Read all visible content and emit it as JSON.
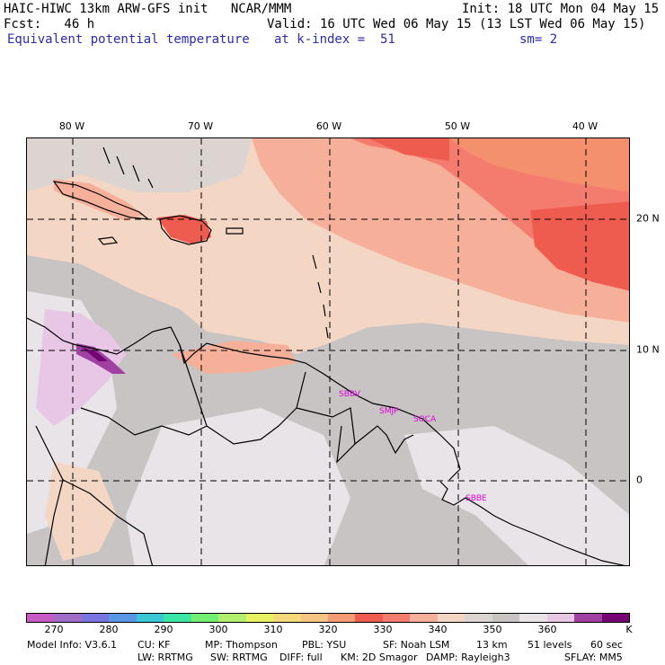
{
  "header": {
    "line1_left": "HAIC-HIWC 13km ARW-GFS init   NCAR/MMM",
    "line1_right": "Init: 18 UTC Mon 04 May 15",
    "line2_left": "Fcst:   46 h",
    "line2_right": "Valid: 16 UTC Wed 06 May 15 (13 LST Wed 06 May 15)",
    "field": "Equivalent potential temperature",
    "kindex": "at k-index =  51",
    "smoothing": "sm= 2"
  },
  "longitude_labels": [
    "80 W",
    "70 W",
    "60 W",
    "50 W",
    "40 W"
  ],
  "latitude_labels": [
    "20 N",
    "10 N",
    "0"
  ],
  "stations": [
    "SBBV",
    "SMJP",
    "SOCA",
    "SBBE"
  ],
  "colorbar": {
    "colors": [
      "#c85ac8",
      "#a06cc8",
      "#7a74e0",
      "#5a96e6",
      "#3ac8d6",
      "#3ae6a4",
      "#72ee72",
      "#b4f070",
      "#e6f060",
      "#f4d87a",
      "#f8c484",
      "#f49a74",
      "#ee5c50",
      "#f47c6e",
      "#f6b09a",
      "#f4d6c4",
      "#dcd4d0",
      "#c8c4c4",
      "#e8e4e8",
      "#e8c6e6",
      "#a040a0",
      "#740474"
    ],
    "tick_labels": [
      "270",
      "280",
      "290",
      "300",
      "310",
      "320",
      "330",
      "340",
      "350",
      "360"
    ],
    "unit": "K"
  },
  "footer": {
    "line1": [
      "Model Info: V3.6.1",
      "CU: KF",
      "MP: Thompson",
      "PBL: YSU",
      "SF: Noah LSM",
      "13 km",
      "51 levels",
      "60 sec"
    ],
    "line2": [
      "LW: RRTMG",
      "SW: RRTMG",
      "DIFF: full",
      "KM: 2D Smagor",
      "DAMP: Rayleigh3",
      "SFLAY: MM5"
    ]
  }
}
